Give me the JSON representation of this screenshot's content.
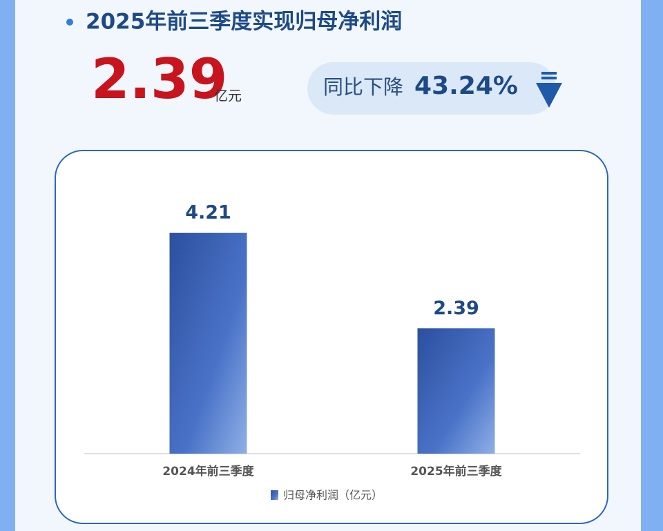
{
  "headline": {
    "title": "2025年前三季度实现归母净利润",
    "value": "2.39",
    "unit": "亿元",
    "change_label": "同比下降",
    "change": "43.24%"
  },
  "chart_data": {
    "type": "bar",
    "categories": [
      "2024年前三季度",
      "2025年前三季度"
    ],
    "series": [
      {
        "name": "归母净利润（亿元）",
        "color": "#3f66b8",
        "values": [
          4.21,
          2.39
        ]
      }
    ]
  }
}
